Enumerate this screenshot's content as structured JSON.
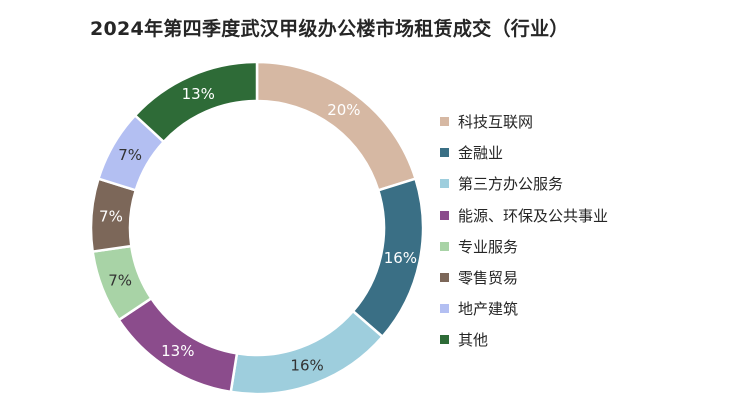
{
  "chart_data": {
    "type": "pie",
    "variant": "donut",
    "title": "2024年第四季度武汉甲级办公楼市场租赁成交（行业）",
    "legend_position": "right",
    "data_labels": true,
    "slices": [
      {
        "name": "科技互联网",
        "value": 20,
        "label": "20%",
        "color": "#D6B8A3",
        "label_color": "#ffffff"
      },
      {
        "name": "金融业",
        "value": 16,
        "label": "16%",
        "color": "#3A6F85",
        "label_color": "#ffffff"
      },
      {
        "name": "第三方办公服务",
        "value": 16,
        "label": "16%",
        "color": "#9ECEDD",
        "label_color": "#333333"
      },
      {
        "name": "能源、环保及公共事业",
        "value": 13,
        "label": "13%",
        "color": "#8B4C8C",
        "label_color": "#ffffff"
      },
      {
        "name": "专业服务",
        "value": 7,
        "label": "7%",
        "color": "#A8D3A6",
        "label_color": "#333333"
      },
      {
        "name": "零售贸易",
        "value": 7,
        "label": "7%",
        "color": "#7C6759",
        "label_color": "#ffffff"
      },
      {
        "name": "地产建筑",
        "value": 7,
        "label": "7%",
        "color": "#B3BFF2",
        "label_color": "#333333"
      },
      {
        "name": "其他",
        "value": 13,
        "label": "13%",
        "color": "#2E6B37",
        "label_color": "#ffffff"
      }
    ]
  }
}
